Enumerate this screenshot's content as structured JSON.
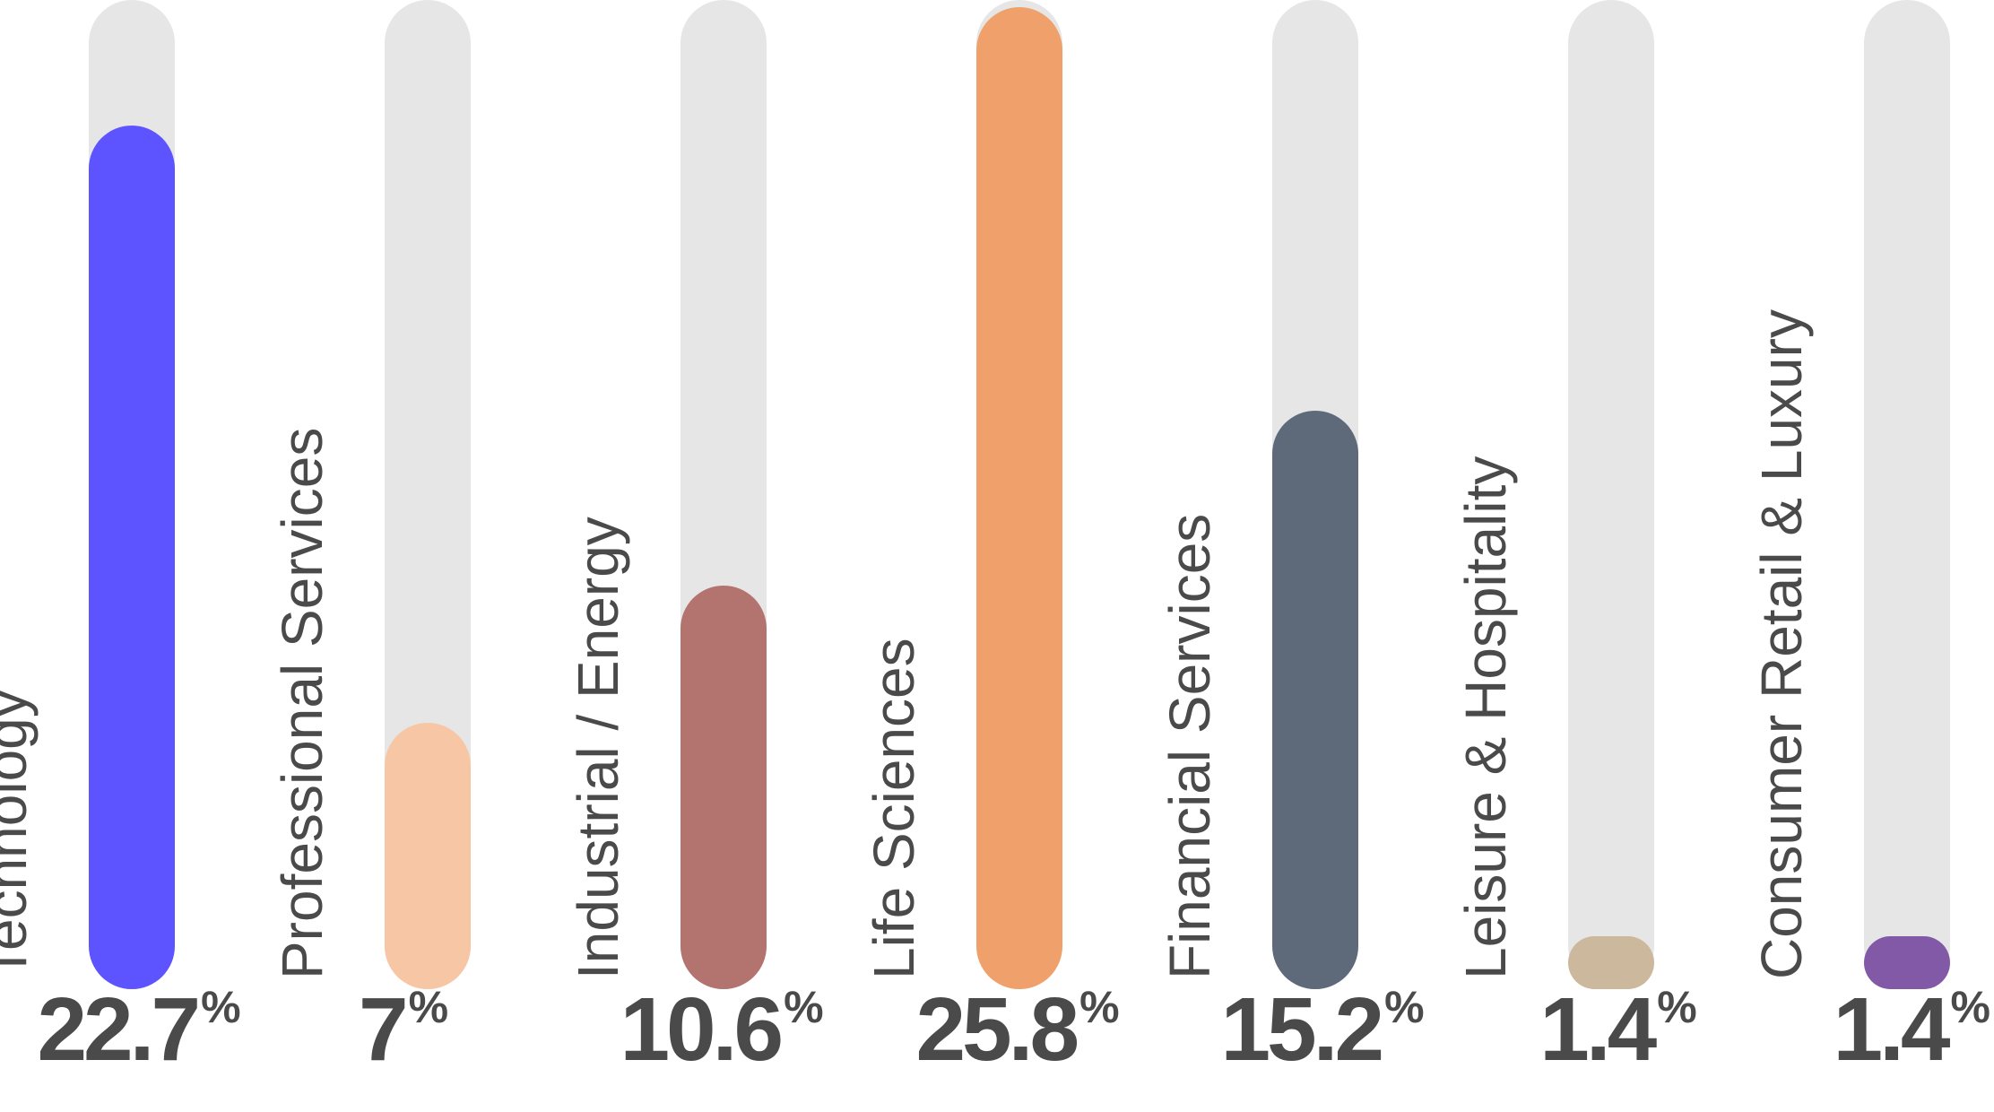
{
  "chart_data": {
    "type": "bar",
    "orientation": "vertical",
    "grid": false,
    "ylim": [
      0,
      26
    ],
    "unit": "%",
    "categories": [
      "Technology",
      "Professional Services",
      "Industrial / Energy",
      "Life Sciences",
      "Financial Services",
      "Leisure & Hospitality",
      "Consumer Retail & Luxury"
    ],
    "values": [
      22.7,
      7,
      10.6,
      25.8,
      15.2,
      1.4,
      1.4
    ],
    "value_labels": [
      "22.7",
      "7",
      "10.6",
      "25.8",
      "15.2",
      "1.4",
      "1.4"
    ],
    "bar_colors": [
      "#5e54ff",
      "#f7c6a5",
      "#b3736e",
      "#f0a06a",
      "#5e6a7a",
      "#cbb89d",
      "#8259a7"
    ],
    "track_color": "#e6e6e6"
  }
}
